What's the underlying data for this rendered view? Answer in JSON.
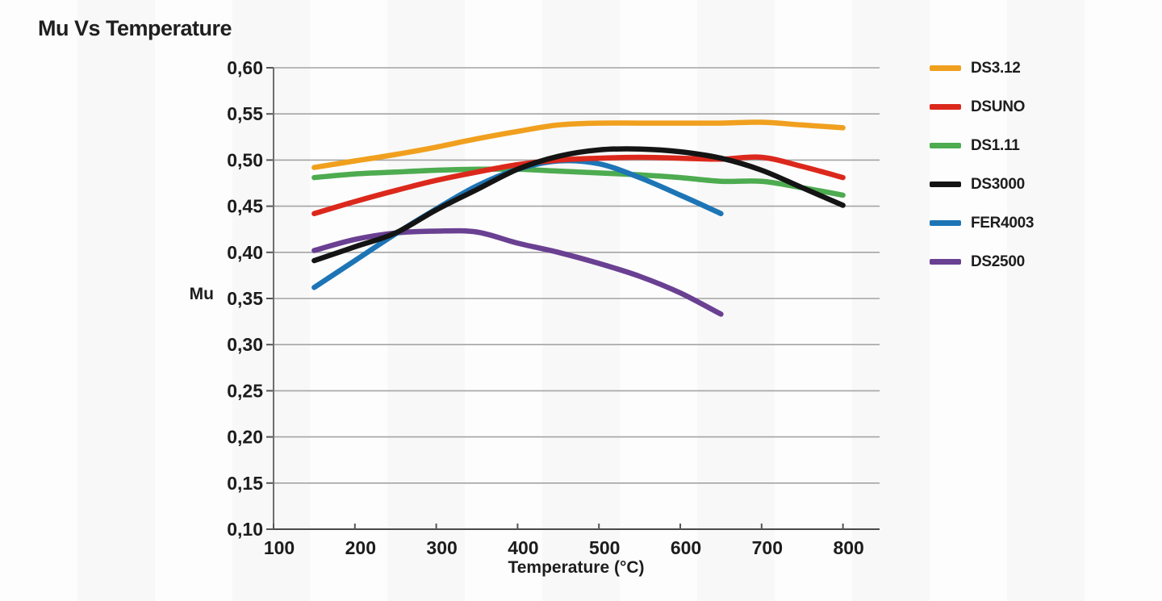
{
  "title": "Mu Vs Temperature",
  "chart_data": {
    "type": "line",
    "title": "Mu Vs Temperature",
    "xlabel": "Temperature (°C)",
    "ylabel": "Mu",
    "xlim": [
      100,
      845
    ],
    "ylim": [
      0.1,
      0.6
    ],
    "grid": "horizontal-only",
    "legend_position": "right-outside",
    "x_ticks": [
      100,
      200,
      300,
      400,
      500,
      600,
      700,
      800
    ],
    "y_tick_values": [
      0.6,
      0.55,
      0.5,
      0.45,
      0.4,
      0.35,
      0.3,
      0.25,
      0.2,
      0.15,
      0.1
    ],
    "y_tick_labels": [
      "0,60",
      "0,55",
      "0,50",
      "0,45",
      "0,40",
      "0,35",
      "0,30",
      "0,25",
      "0,20",
      "0,15",
      "0,10"
    ],
    "series": [
      {
        "name": "DS3.12",
        "color": "#F0A01E",
        "x": [
          150,
          200,
          250,
          300,
          350,
          400,
          450,
          500,
          550,
          600,
          650,
          700,
          750,
          800
        ],
        "y": [
          0.492,
          0.499,
          0.506,
          0.514,
          0.523,
          0.531,
          0.538,
          0.54,
          0.54,
          0.54,
          0.54,
          0.541,
          0.538,
          0.535
        ]
      },
      {
        "name": "DSUNO",
        "color": "#DC281C",
        "x": [
          150,
          200,
          250,
          300,
          350,
          400,
          450,
          500,
          550,
          600,
          650,
          700,
          750,
          800
        ],
        "y": [
          0.442,
          0.455,
          0.467,
          0.478,
          0.487,
          0.495,
          0.5,
          0.502,
          0.503,
          0.502,
          0.501,
          0.503,
          0.493,
          0.481
        ]
      },
      {
        "name": "DS1.11",
        "color": "#4DAB50",
        "x": [
          150,
          200,
          250,
          300,
          350,
          400,
          450,
          500,
          550,
          600,
          650,
          700,
          750,
          800
        ],
        "y": [
          0.481,
          0.485,
          0.487,
          0.489,
          0.49,
          0.49,
          0.488,
          0.486,
          0.484,
          0.481,
          0.477,
          0.477,
          0.47,
          0.462
        ]
      },
      {
        "name": "DS3000",
        "color": "#141414",
        "x": [
          150,
          200,
          250,
          300,
          350,
          400,
          450,
          500,
          550,
          600,
          650,
          700,
          750,
          800
        ],
        "y": [
          0.391,
          0.406,
          0.421,
          0.446,
          0.468,
          0.49,
          0.504,
          0.511,
          0.512,
          0.509,
          0.502,
          0.489,
          0.47,
          0.451
        ]
      },
      {
        "name": "FER4003",
        "color": "#1D75B6",
        "x": [
          150,
          200,
          250,
          300,
          350,
          400,
          450,
          500,
          550,
          600,
          650
        ],
        "y": [
          0.362,
          0.391,
          0.42,
          0.447,
          0.472,
          0.49,
          0.499,
          0.496,
          0.481,
          0.462,
          0.442
        ]
      },
      {
        "name": "DS2500",
        "color": "#6A4092",
        "x": [
          150,
          200,
          250,
          300,
          350,
          400,
          450,
          500,
          550,
          600,
          650
        ],
        "y": [
          0.402,
          0.414,
          0.421,
          0.423,
          0.422,
          0.41,
          0.4,
          0.388,
          0.374,
          0.356,
          0.333
        ]
      }
    ]
  }
}
